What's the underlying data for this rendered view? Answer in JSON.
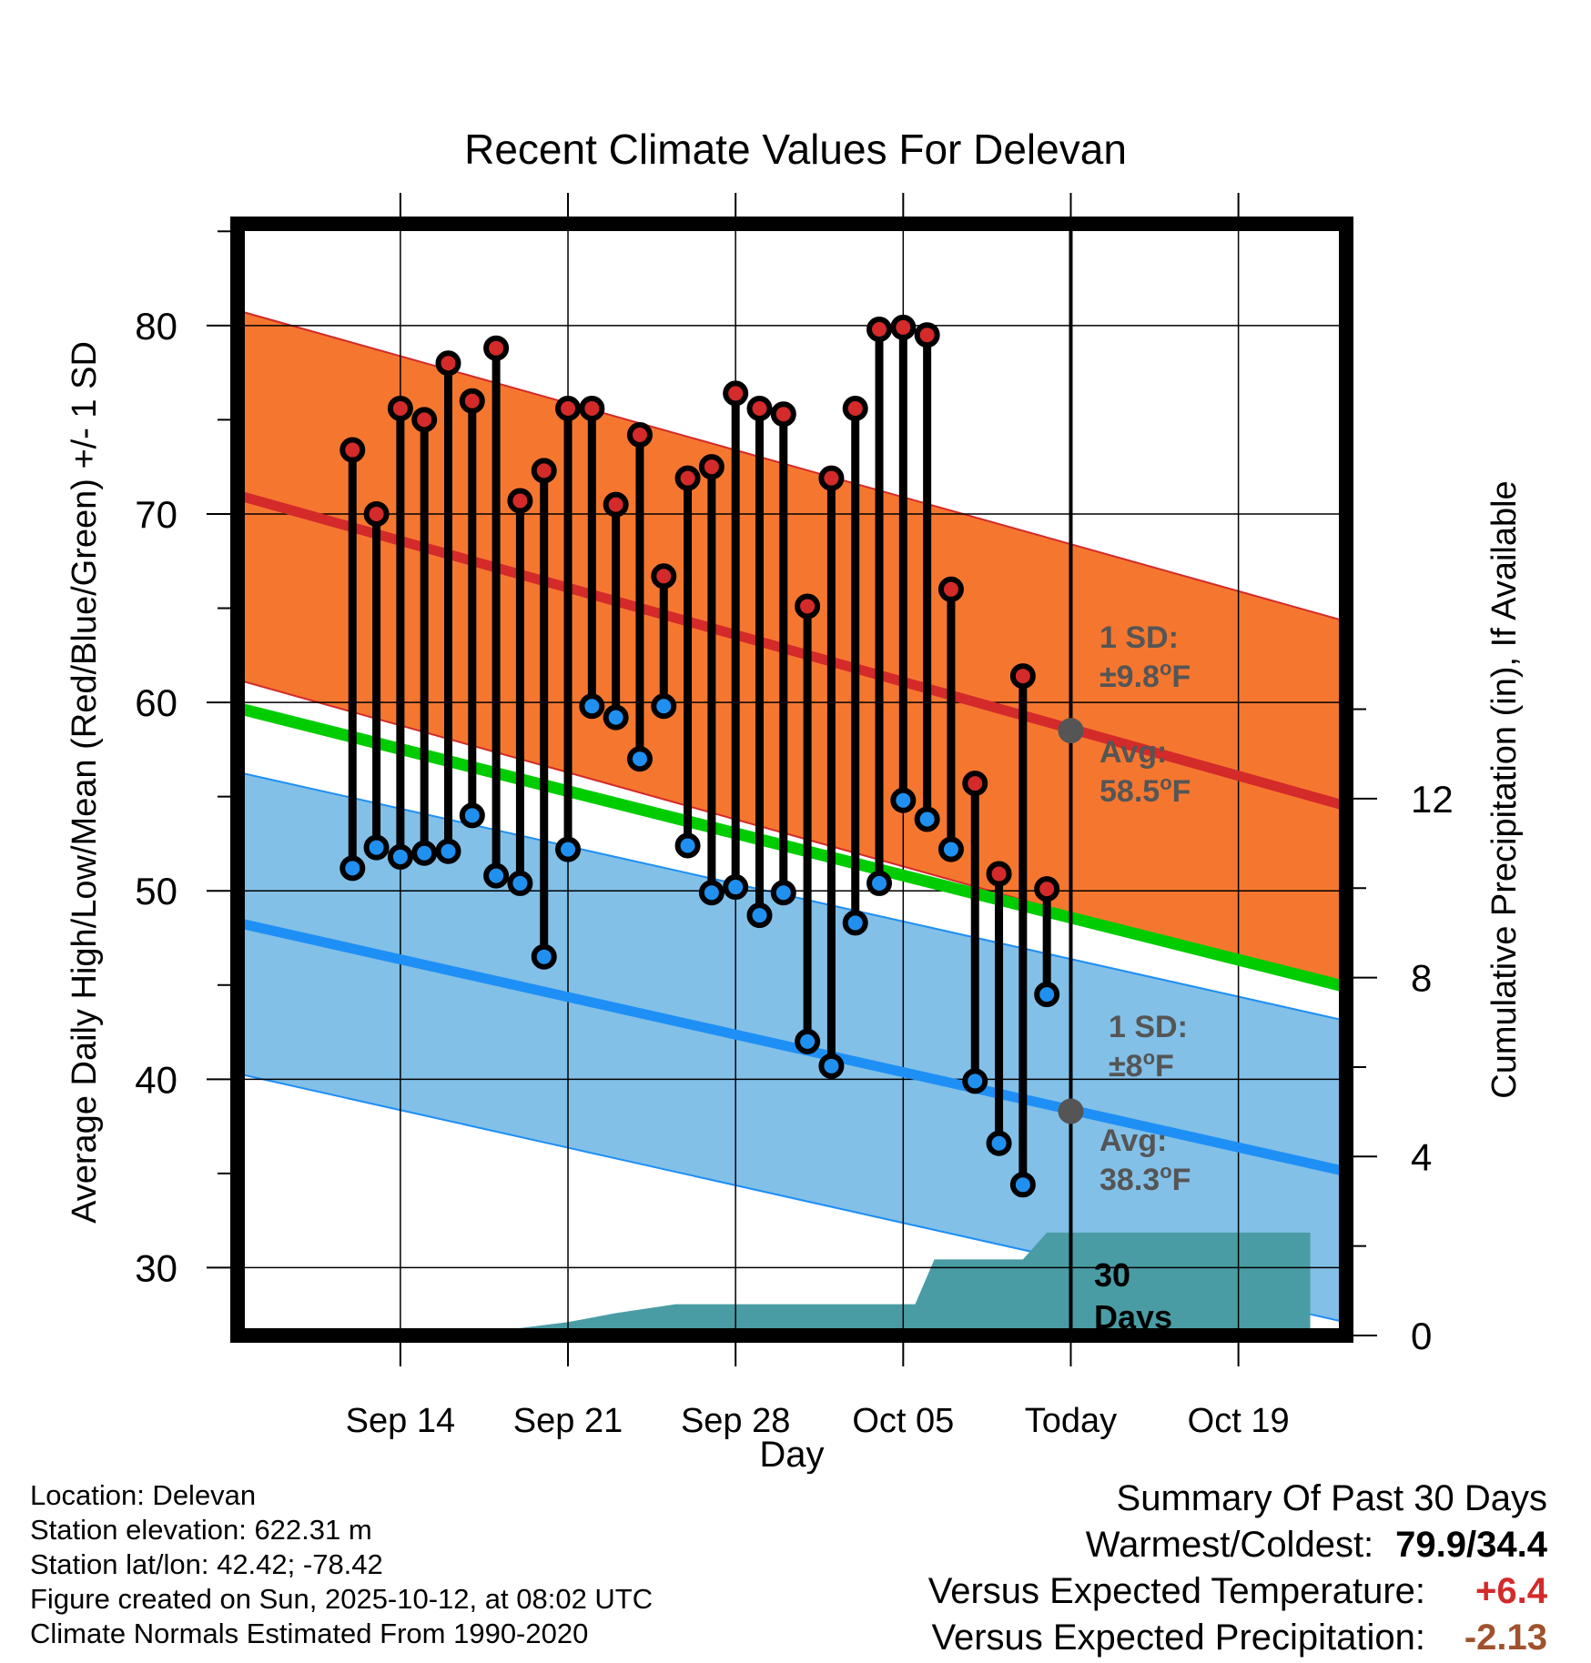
{
  "chart_data": {
    "type": "line",
    "title": "Recent Climate Values For Delevan",
    "xlabel": "Day",
    "ylabel": "Average Daily High/Low/Mean (Red/Blue/Green) +/- 1 SD",
    "ylabel_right": "Cumulative Precipitation (in), If Available",
    "ylim": [
      26.4,
      85.4
    ],
    "ylim_right": [
      0,
      24.85
    ],
    "y_ticks": [
      30,
      40,
      50,
      60,
      70,
      80
    ],
    "y_ticks_right": [
      0,
      4,
      8,
      12
    ],
    "x_range_days": [
      -34.8,
      11.5
    ],
    "x_ticks": [
      {
        "day": -28,
        "label": "Sep 14"
      },
      {
        "day": -21,
        "label": "Sep 21"
      },
      {
        "day": -14,
        "label": "Sep 28"
      },
      {
        "day": -7,
        "label": "Oct 05"
      },
      {
        "day": 0,
        "label": "Today"
      },
      {
        "day": 7,
        "label": "Oct 19"
      }
    ],
    "days": [
      -30,
      -29,
      -28,
      -27,
      -26,
      -25,
      -24,
      -23,
      -22,
      -21,
      -20,
      -19,
      -18,
      -17,
      -16,
      -15,
      -14,
      -13,
      -12,
      -11,
      -10,
      -9,
      -8,
      -7,
      -6,
      -5,
      -4,
      -3,
      -2,
      -1
    ],
    "series": [
      {
        "name": "Daily High",
        "color": "#d42a2a",
        "values": [
          73.4,
          70.0,
          75.6,
          75.0,
          78.0,
          76.0,
          78.8,
          70.7,
          72.3,
          75.6,
          75.6,
          70.5,
          74.2,
          66.7,
          71.9,
          72.5,
          76.4,
          75.6,
          75.3,
          65.1,
          71.9,
          75.6,
          79.8,
          79.9,
          79.5,
          66.0,
          55.7,
          50.9,
          61.4,
          50.1
        ]
      },
      {
        "name": "Daily Low",
        "color": "#2090f0",
        "values": [
          51.2,
          52.3,
          51.8,
          52.0,
          52.1,
          54.0,
          50.8,
          50.4,
          46.5,
          52.2,
          59.8,
          59.2,
          57.0,
          59.8,
          52.4,
          49.9,
          50.2,
          48.7,
          49.9,
          42.0,
          40.7,
          48.3,
          50.4,
          54.8,
          53.8,
          52.2,
          39.9,
          36.6,
          34.4,
          44.5
        ]
      }
    ],
    "normals": {
      "high_avg": {
        "start": 71.0,
        "end": 54.5,
        "today": 58.5
      },
      "low_avg": {
        "start": 48.3,
        "end": 35.1,
        "today": 38.3
      },
      "mean_avg": {
        "start": 59.7,
        "end": 44.9
      },
      "high_sd": 9.8,
      "low_sd": 8
    },
    "precip_cumulative": [
      {
        "day": -25.5,
        "value": 0
      },
      {
        "day": -21.0,
        "value": 0.3
      },
      {
        "day": -19.0,
        "value": 0.5
      },
      {
        "day": -16.5,
        "value": 0.7
      },
      {
        "day": -6.5,
        "value": 0.7
      },
      {
        "day": -5.7,
        "value": 1.7
      },
      {
        "day": -2.0,
        "value": 1.7
      },
      {
        "day": -1.0,
        "value": 2.3
      },
      {
        "day": 10.0,
        "value": 2.3
      }
    ],
    "annotations": {
      "high_sd_label": "1 SD:",
      "high_sd_value": "±9.8",
      "high_avg_label": "Avg:",
      "high_avg_value": "58.5",
      "low_sd_label": "1 SD:",
      "low_sd_value": "±8",
      "low_avg_label": "Avg:",
      "low_avg_value": "38.3",
      "deg_symbol": "o",
      "unit": "F",
      "window_label_1": "30",
      "window_label_2": "Days"
    },
    "colors": {
      "high_band": "#f5772f",
      "high_line": "#d42a2a",
      "low_band": "#82c0e8",
      "low_line": "#1e8ff5",
      "mean_line": "#00cc00",
      "precip": "#4a9ca4",
      "today_marker": "#555555"
    }
  },
  "footer": {
    "location": "Location: Delevan",
    "elevation": "Station elevation: 622.31 m",
    "latlon": "Station lat/lon: 42.42; -78.42",
    "created": "Figure created on Sun, 2025-10-12, at 08:02 UTC",
    "normals": "Climate Normals Estimated From 1990-2020"
  },
  "summary": {
    "title": "Summary Of Past 30 Days",
    "warm_cold_label": "Warmest/Coldest:",
    "warm_cold_value": "79.9/34.4",
    "temp_label": "Versus Expected Temperature:",
    "temp_value": "+6.4",
    "temp_color": "#d42a2a",
    "precip_label": "Versus Expected Precipitation:",
    "precip_value": "-2.13",
    "precip_color": "#a0522d"
  }
}
